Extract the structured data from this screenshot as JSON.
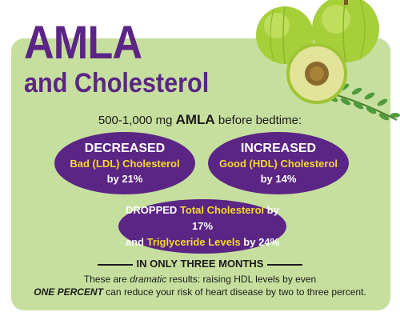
{
  "title": {
    "line1": "AMLA",
    "line2": "and Cholesterol"
  },
  "intro": {
    "prefix": "500-1,000 mg ",
    "highlight": "AMLA",
    "suffix": " before bedtime:"
  },
  "ldl": {
    "heading": "DECREASED",
    "label": "Bad (LDL) Cholesterol",
    "by": "by 21%"
  },
  "hdl": {
    "heading": "INCREASED",
    "label": "Good (HDL) Cholesterol",
    "by": "by 14%"
  },
  "total": {
    "prefix": "DROPPED ",
    "label1": "Total Cholesterol",
    "by1": " by 17%",
    "and": "and ",
    "label2": "Triglyceride Levels",
    "by2": " by 24%"
  },
  "months": "IN ONLY THREE MONTHS",
  "note": {
    "l1_a": "These are ",
    "l1_em": "dramatic",
    "l1_b": " results: raising HDL levels by even",
    "l2_em": "ONE PERCENT",
    "l2_b": " can reduce your risk of heart disease by two to three percent."
  },
  "colors": {
    "purple": "#5b2585",
    "panel": "#c6df9f",
    "yellow": "#f6d928",
    "fruit": "#a6cf3a",
    "leaf": "#4f9a3a"
  }
}
